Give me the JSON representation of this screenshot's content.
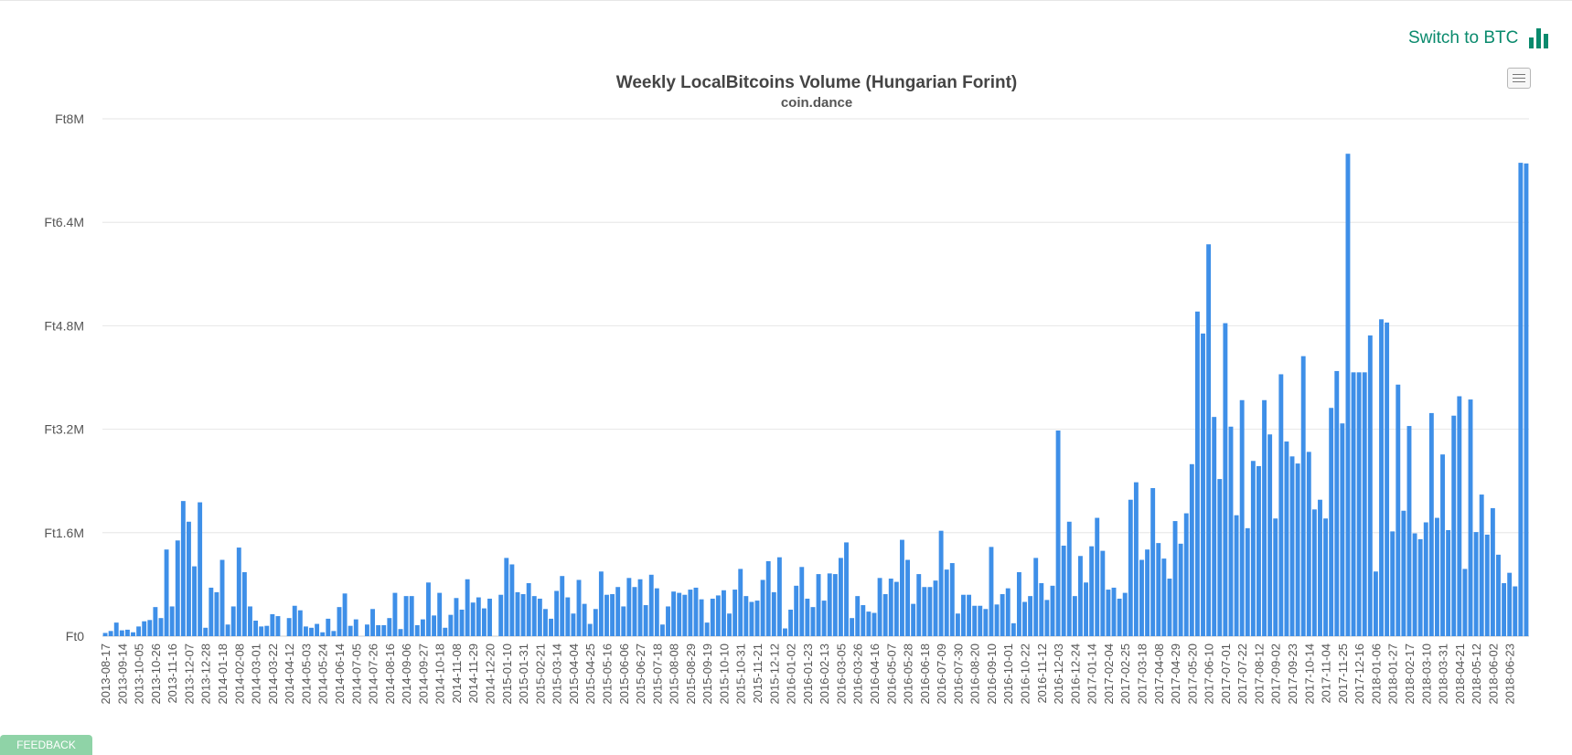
{
  "switch_link": {
    "label": "Switch to BTC",
    "icon": "bar-chart-icon",
    "color": "#0a8a6d"
  },
  "menu_button": {
    "icon": "hamburger-menu-icon"
  },
  "feedback_button": {
    "label": "FEEDBACK"
  },
  "chart_data": {
    "type": "bar",
    "title": "Weekly LocalBitcoins Volume (Hungarian Forint)",
    "subtitle": "coin.dance",
    "xlabel": "",
    "ylabel": "",
    "ylim": [
      0,
      8000000
    ],
    "y_ticks": [
      0,
      1600000,
      3200000,
      4800000,
      6400000,
      8000000
    ],
    "y_tick_labels": [
      "Ft0",
      "Ft1.6M",
      "Ft3.2M",
      "Ft4.8M",
      "Ft6.4M",
      "Ft8M"
    ],
    "grid": true,
    "legend": "none",
    "bar_color": "#3e8fe8",
    "x_tick_labels": [
      "2013-08-17",
      "2013-09-14",
      "2013-10-05",
      "2013-10-26",
      "2013-11-16",
      "2013-12-07",
      "2013-12-28",
      "2014-01-18",
      "2014-02-08",
      "2014-03-01",
      "2014-03-22",
      "2014-04-12",
      "2014-05-03",
      "2014-05-24",
      "2014-06-14",
      "2014-07-05",
      "2014-07-26",
      "2014-08-16",
      "2014-09-06",
      "2014-09-27",
      "2014-10-18",
      "2014-11-08",
      "2014-11-29",
      "2014-12-20",
      "2015-01-10",
      "2015-01-31",
      "2015-02-21",
      "2015-03-14",
      "2015-04-04",
      "2015-04-25",
      "2015-05-16",
      "2015-06-06",
      "2015-06-27",
      "2015-07-18",
      "2015-08-08",
      "2015-08-29",
      "2015-09-19",
      "2015-10-10",
      "2015-10-31",
      "2015-11-21",
      "2015-12-12",
      "2016-01-02",
      "2016-01-23",
      "2016-02-13",
      "2016-03-05",
      "2016-03-26",
      "2016-04-16",
      "2016-05-07",
      "2016-05-28",
      "2016-06-18",
      "2016-07-09",
      "2016-07-30",
      "2016-08-20",
      "2016-09-10",
      "2016-10-01",
      "2016-10-22",
      "2016-11-12",
      "2016-12-03",
      "2016-12-24",
      "2017-01-14",
      "2017-02-04",
      "2017-02-25",
      "2017-03-18",
      "2017-04-08",
      "2017-04-29",
      "2017-05-20",
      "2017-06-10",
      "2017-07-01",
      "2017-07-22",
      "2017-08-12",
      "2017-09-02",
      "2017-09-23",
      "2017-10-14",
      "2017-11-04",
      "2017-11-25",
      "2017-12-16",
      "2018-01-06",
      "2018-01-27",
      "2018-02-17",
      "2018-03-10",
      "2018-03-31",
      "2018-04-21",
      "2018-05-12",
      "2018-06-02",
      "2018-06-23"
    ],
    "values": [
      50000,
      80000,
      210000,
      90000,
      100000,
      60000,
      150000,
      230000,
      250000,
      450000,
      280000,
      1340000,
      460000,
      1480000,
      2090000,
      1770000,
      1080000,
      2070000,
      130000,
      750000,
      680000,
      1180000,
      180000,
      460000,
      1370000,
      990000,
      460000,
      240000,
      150000,
      160000,
      340000,
      310000,
      0,
      280000,
      470000,
      400000,
      150000,
      130000,
      190000,
      60000,
      270000,
      80000,
      450000,
      660000,
      160000,
      260000,
      0,
      180000,
      420000,
      170000,
      170000,
      280000,
      670000,
      110000,
      620000,
      620000,
      170000,
      260000,
      830000,
      320000,
      670000,
      130000,
      330000,
      590000,
      410000,
      880000,
      520000,
      600000,
      430000,
      580000,
      0,
      640000,
      1210000,
      1110000,
      680000,
      650000,
      820000,
      620000,
      580000,
      420000,
      270000,
      700000,
      930000,
      600000,
      350000,
      870000,
      500000,
      190000,
      420000,
      1000000,
      640000,
      650000,
      760000,
      460000,
      900000,
      760000,
      880000,
      480000,
      950000,
      740000,
      180000,
      460000,
      690000,
      670000,
      640000,
      720000,
      750000,
      570000,
      210000,
      580000,
      630000,
      710000,
      350000,
      720000,
      1040000,
      620000,
      530000,
      550000,
      870000,
      1160000,
      680000,
      1220000,
      120000,
      410000,
      780000,
      1070000,
      580000,
      450000,
      960000,
      550000,
      970000,
      960000,
      1210000,
      1450000,
      280000,
      620000,
      480000,
      380000,
      360000,
      900000,
      650000,
      890000,
      840000,
      1490000,
      1180000,
      500000,
      960000,
      760000,
      760000,
      860000,
      1630000,
      1030000,
      1130000,
      350000,
      640000,
      640000,
      470000,
      470000,
      420000,
      1380000,
      490000,
      650000,
      740000,
      200000,
      990000,
      530000,
      620000,
      1210000,
      820000,
      560000,
      780000,
      3180000,
      1400000,
      1770000,
      620000,
      1240000,
      830000,
      1390000,
      1830000,
      1320000,
      720000,
      750000,
      580000,
      670000,
      2110000,
      2380000,
      1180000,
      1340000,
      2290000,
      1440000,
      1200000,
      890000,
      1780000,
      1430000,
      1900000,
      2660000,
      5020000,
      4680000,
      6060000,
      3390000,
      2430000,
      4840000,
      3240000,
      1870000,
      3650000,
      1670000,
      2710000,
      2630000,
      3650000,
      3120000,
      1820000,
      4050000,
      3010000,
      2780000,
      2670000,
      4330000,
      2850000,
      1960000,
      2110000,
      1820000,
      3530000,
      4100000,
      3290000,
      7460000,
      4080000,
      4080000,
      4080000,
      4650000,
      1000000,
      4900000,
      4850000,
      1620000,
      3890000,
      1940000,
      3250000,
      1590000,
      1500000,
      1760000,
      3450000,
      1830000,
      2810000,
      1640000,
      3410000,
      3710000,
      1040000,
      3660000,
      1610000,
      2190000,
      1570000,
      1980000,
      1260000,
      820000,
      980000,
      770000,
      7320000,
      7310000
    ]
  }
}
